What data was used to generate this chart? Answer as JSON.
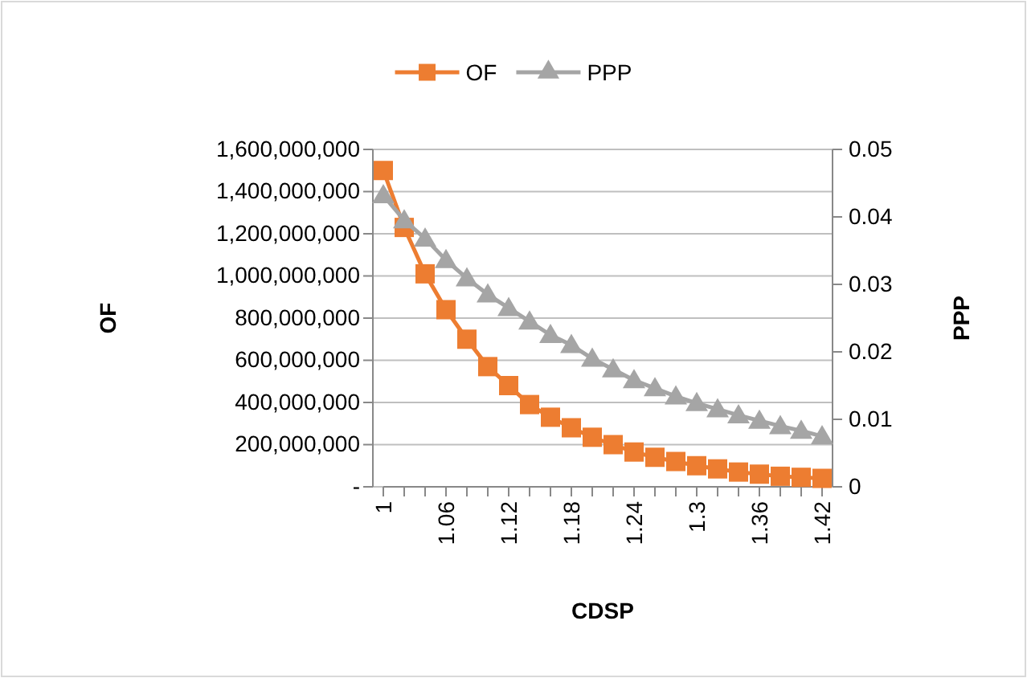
{
  "chart_data": {
    "type": "line",
    "xlabel": "CDSP",
    "ylabel": "OF",
    "y2label": "PPP",
    "categories": [
      "1",
      null,
      null,
      "1.06",
      null,
      null,
      "1.12",
      null,
      null,
      "1.18",
      null,
      null,
      "1.24",
      null,
      null,
      "1.3",
      null,
      null,
      "1.36",
      null,
      null,
      "1.42"
    ],
    "series": [
      {
        "name": "OF",
        "color": "#ed7d31",
        "marker": "square",
        "values": [
          1500000000,
          1230000000,
          1010000000,
          840000000,
          700000000,
          570000000,
          480000000,
          390000000,
          330000000,
          280000000,
          235000000,
          200000000,
          165000000,
          140000000,
          120000000,
          100000000,
          85000000,
          70000000,
          60000000,
          50000000,
          45000000,
          40000000
        ]
      },
      {
        "name": "PPP",
        "color": "#a5a5a5",
        "marker": "triangle",
        "axis": "y2",
        "values": [
          0.0432,
          0.0395,
          0.0368,
          0.0336,
          0.0309,
          0.0285,
          0.0265,
          0.0245,
          0.0225,
          0.021,
          0.019,
          0.0174,
          0.0158,
          0.0146,
          0.0134,
          0.0124,
          0.0115,
          0.0106,
          0.0098,
          0.009,
          0.0083,
          0.0075
        ]
      }
    ],
    "ylim": [
      0,
      1600000000
    ],
    "yticks": [
      {
        "value": 0,
        "label": "-"
      },
      {
        "value": 200000000,
        "label": "200,000,000"
      },
      {
        "value": 400000000,
        "label": "400,000,000"
      },
      {
        "value": 600000000,
        "label": "600,000,000"
      },
      {
        "value": 800000000,
        "label": "800,000,000"
      },
      {
        "value": 1000000000,
        "label": "1,000,000,000"
      },
      {
        "value": 1200000000,
        "label": "1,200,000,000"
      },
      {
        "value": 1400000000,
        "label": "1,400,000,000"
      },
      {
        "value": 1600000000,
        "label": "1,600,000,000"
      }
    ],
    "y2lim": [
      0,
      0.05
    ],
    "y2ticks": [
      0,
      0.01,
      0.02,
      0.03,
      0.04,
      0.05
    ],
    "grid": "y",
    "legend": "top"
  }
}
